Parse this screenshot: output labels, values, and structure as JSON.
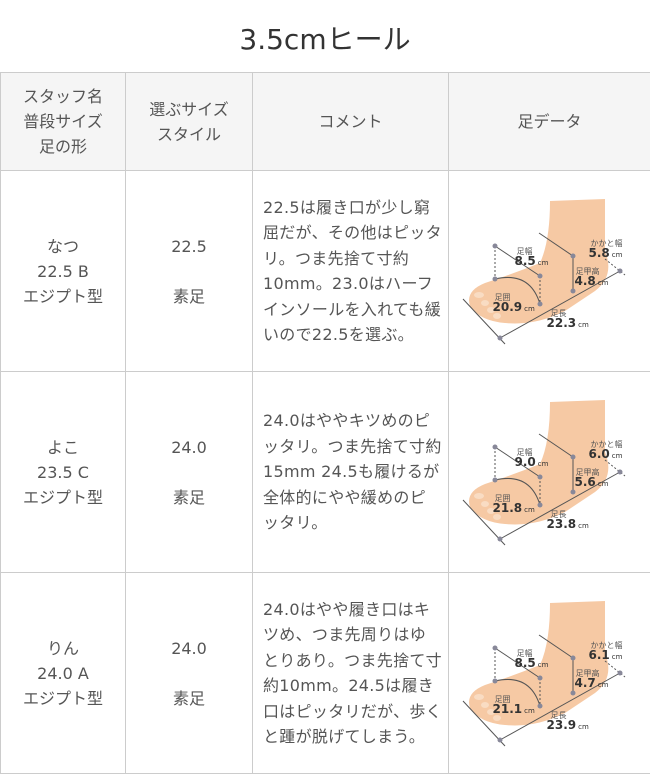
{
  "title": "3.5cmヒール",
  "headers": [
    "スタッフ名\n普段サイズ\n足の形",
    "選ぶサイズ\nスタイル",
    "コメント",
    "足データ"
  ],
  "labels": {
    "width": "足幅",
    "heel": "かかと幅",
    "instep": "足甲高",
    "girth": "足囲",
    "length": "足長",
    "unit": "cm"
  },
  "rows": [
    {
      "name": "なつ",
      "size": "22.5 B",
      "shape": "エジプト型",
      "choose": "22.5",
      "style": "素足",
      "comment": "22.5は履き口が少し窮屈だが、その他はピッタリ。つま先捨て寸約10mm。23.0はハーフインソールを入れても緩いので22.5を選ぶ。",
      "foot": {
        "width": "8.5",
        "heel": "5.8",
        "instep": "4.8",
        "girth": "20.9",
        "length": "22.3"
      }
    },
    {
      "name": "よこ",
      "size": "23.5 C",
      "shape": "エジプト型",
      "choose": "24.0",
      "style": "素足",
      "comment": "24.0はややキツめのピッタリ。つま先捨て寸約15mm 24.5も履けるが全体的にやや緩めのピッタリ。",
      "foot": {
        "width": "9.0",
        "heel": "6.0",
        "instep": "5.6",
        "girth": "21.8",
        "length": "23.8"
      }
    },
    {
      "name": "りん",
      "size": "24.0 A",
      "shape": "エジプト型",
      "choose": "24.0",
      "style": "素足",
      "comment": "24.0はやや履き口はキツめ、つま先周りはゆとりあり。つま先捨て寸約10mm。24.5は履き口はピッタリだが、歩くと踵が脱げてしまう。",
      "foot": {
        "width": "8.5",
        "heel": "6.1",
        "instep": "4.7",
        "girth": "21.1",
        "length": "23.9"
      }
    }
  ]
}
